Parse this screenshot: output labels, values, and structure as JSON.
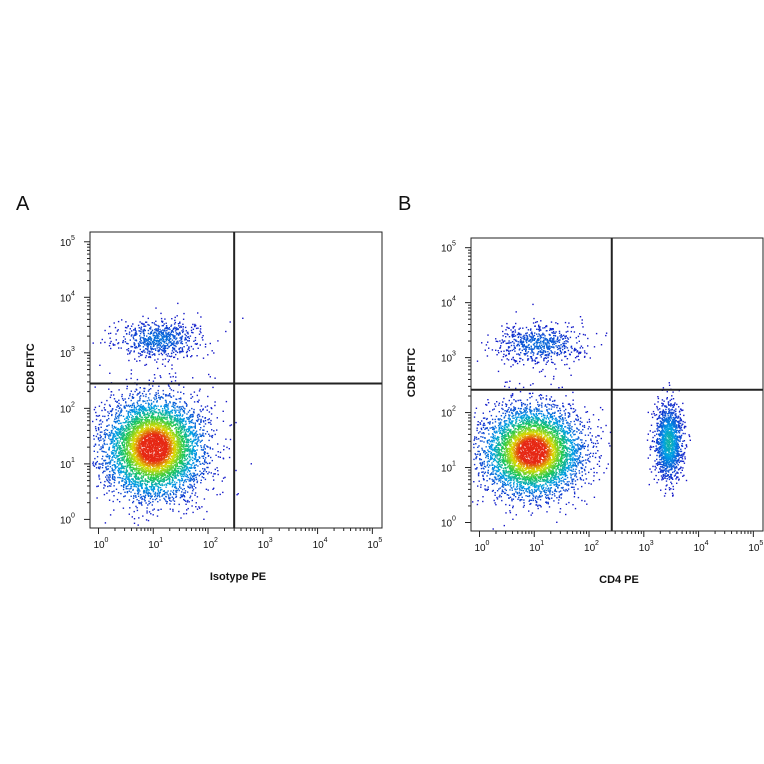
{
  "chart_data": [
    {
      "type": "scatter",
      "panel_label": "A",
      "xlabel": "Isotype PE",
      "ylabel": "CD8 FITC",
      "x_scale": "log",
      "y_scale": "log",
      "xlim": [
        0.7,
        150000
      ],
      "ylim": [
        0.7,
        150000
      ],
      "x_ticks": [
        {
          "base": "10",
          "exp": "0",
          "value": 1
        },
        {
          "base": "10",
          "exp": "1",
          "value": 10
        },
        {
          "base": "10",
          "exp": "2",
          "value": 100
        },
        {
          "base": "10",
          "exp": "3",
          "value": 1000
        },
        {
          "base": "10",
          "exp": "4",
          "value": 10000
        },
        {
          "base": "10",
          "exp": "5",
          "value": 100000
        }
      ],
      "y_ticks": [
        {
          "base": "10",
          "exp": "0",
          "value": 1
        },
        {
          "base": "10",
          "exp": "1",
          "value": 10
        },
        {
          "base": "10",
          "exp": "2",
          "value": 100
        },
        {
          "base": "10",
          "exp": "3",
          "value": 1000
        },
        {
          "base": "10",
          "exp": "4",
          "value": 10000
        },
        {
          "base": "10",
          "exp": "5",
          "value": 100000
        }
      ],
      "quadrant_gate": {
        "x": 300,
        "y": 280
      },
      "populations": [
        {
          "x_center": 10,
          "y_center": 20,
          "x_spread_decades": 0.45,
          "y_spread_decades": 0.45,
          "events": 5500
        },
        {
          "x_center": 12,
          "y_center": 1800,
          "x_spread_decades": 0.4,
          "y_spread_decades": 0.18,
          "events": 700
        }
      ],
      "grid": false,
      "legend": "none"
    },
    {
      "type": "scatter",
      "panel_label": "B",
      "xlabel": "CD4 PE",
      "ylabel": "CD8 FITC",
      "x_scale": "log",
      "y_scale": "log",
      "xlim": [
        0.7,
        150000
      ],
      "ylim": [
        0.7,
        150000
      ],
      "x_ticks": [
        {
          "base": "10",
          "exp": "0",
          "value": 1
        },
        {
          "base": "10",
          "exp": "1",
          "value": 10
        },
        {
          "base": "10",
          "exp": "2",
          "value": 100
        },
        {
          "base": "10",
          "exp": "3",
          "value": 1000
        },
        {
          "base": "10",
          "exp": "4",
          "value": 10000
        },
        {
          "base": "10",
          "exp": "5",
          "value": 100000
        }
      ],
      "y_ticks": [
        {
          "base": "10",
          "exp": "0",
          "value": 1
        },
        {
          "base": "10",
          "exp": "1",
          "value": 10
        },
        {
          "base": "10",
          "exp": "2",
          "value": 100
        },
        {
          "base": "10",
          "exp": "3",
          "value": 1000
        },
        {
          "base": "10",
          "exp": "4",
          "value": 10000
        },
        {
          "base": "10",
          "exp": "5",
          "value": 100000
        }
      ],
      "quadrant_gate": {
        "x": 260,
        "y": 260
      },
      "populations": [
        {
          "x_center": 9,
          "y_center": 20,
          "x_spread_decades": 0.45,
          "y_spread_decades": 0.4,
          "events": 5000
        },
        {
          "x_center": 12,
          "y_center": 1800,
          "x_spread_decades": 0.4,
          "y_spread_decades": 0.18,
          "events": 650
        },
        {
          "x_center": 2800,
          "y_center": 30,
          "x_spread_decades": 0.13,
          "y_spread_decades": 0.35,
          "events": 1400
        }
      ],
      "grid": false,
      "legend": "none"
    }
  ]
}
